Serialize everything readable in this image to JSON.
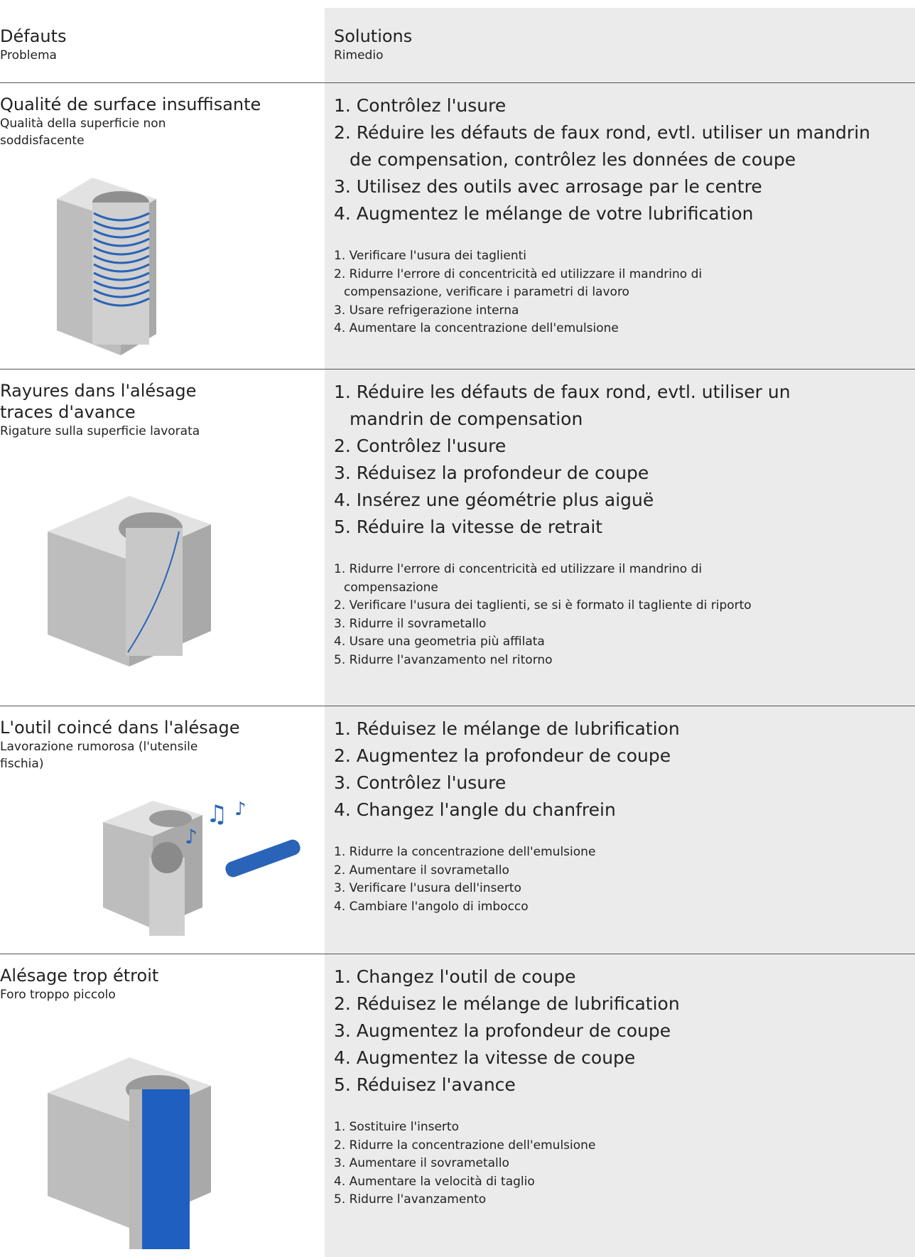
{
  "header": {
    "defects": {
      "title": "Défauts",
      "subtitle": "Problema"
    },
    "solutions": {
      "title": "Solutions",
      "subtitle": "Rimedio"
    }
  },
  "rows": [
    {
      "defect": "Qualité de surface insuffisante",
      "defect_it": "Qualità della superficie non\nsoddisfacente",
      "solutions_fr": [
        "1. Contrôlez l'usure",
        "2. Réduire les défauts de faux rond, evtl. utiliser un mandrin\nde compensation, contrôlez les données de coupe",
        "3. Utilisez des outils avec arrosage par le centre",
        "4. Augmentez le mélange de votre lubrification"
      ],
      "solutions_it": [
        "1. Verificare l'usura dei taglienti",
        "2. Ridurre l'errore di concentricità ed utilizzare il mandrino di\ncompensazione, verificare i parametri di lavoro",
        "3. Usare refrigerazione interna",
        "4. Aumentare la concentrazione dell'emulsione"
      ]
    },
    {
      "defect": "Rayures dans l'alésage\ntraces d'avance",
      "defect_it": "Rigature sulla superficie lavorata",
      "solutions_fr": [
        "1. Réduire les défauts de faux rond, evtl. utiliser un\nmandrin de compensation",
        "2. Contrôlez l'usure",
        "3. Réduisez la profondeur de coupe",
        "4. Insérez une géométrie plus aiguë",
        "5. Réduire la vitesse de retrait"
      ],
      "solutions_it": [
        "1. Ridurre l'errore di concentricità ed utilizzare il mandrino di\ncompensazione",
        "2. Verificare l'usura dei taglienti, se si è formato il tagliente di riporto",
        "3. Ridurre il sovrametallo",
        "4. Usare una geometria più affilata",
        "5. Ridurre l'avanzamento nel ritorno"
      ]
    },
    {
      "defect": "L'outil coincé dans l'alésage",
      "defect_it": "Lavorazione rumorosa (l'utensile\nfischia)",
      "solutions_fr": [
        "1. Réduisez le mélange de lubrification",
        "2. Augmentez la profondeur de coupe",
        "3. Contrôlez l'usure",
        "4. Changez l'angle du chanfrein"
      ],
      "solutions_it": [
        "1. Ridurre la concentrazione dell'emulsione",
        "2. Aumentare il sovrametallo",
        "3. Verificare l'usura dell'inserto",
        "4. Cambiare l'angolo di imbocco"
      ]
    },
    {
      "defect": "Alésage trop étroit",
      "defect_it": "Foro troppo piccolo",
      "solutions_fr": [
        "1. Changez l'outil de coupe",
        "2. Réduisez le mélange de lubrification",
        "3. Augmentez la profondeur de coupe",
        "4. Augmentez la vitesse de coupe",
        "5. Réduisez l'avance"
      ],
      "solutions_it": [
        "1. Sostituire l'inserto",
        "2. Ridurre la concentrazione dell'emulsione",
        "3. Aumentare il sovrametallo",
        "4. Aumentare la velocità di taglio",
        "5. Ridurre l'avanzamento"
      ]
    }
  ]
}
